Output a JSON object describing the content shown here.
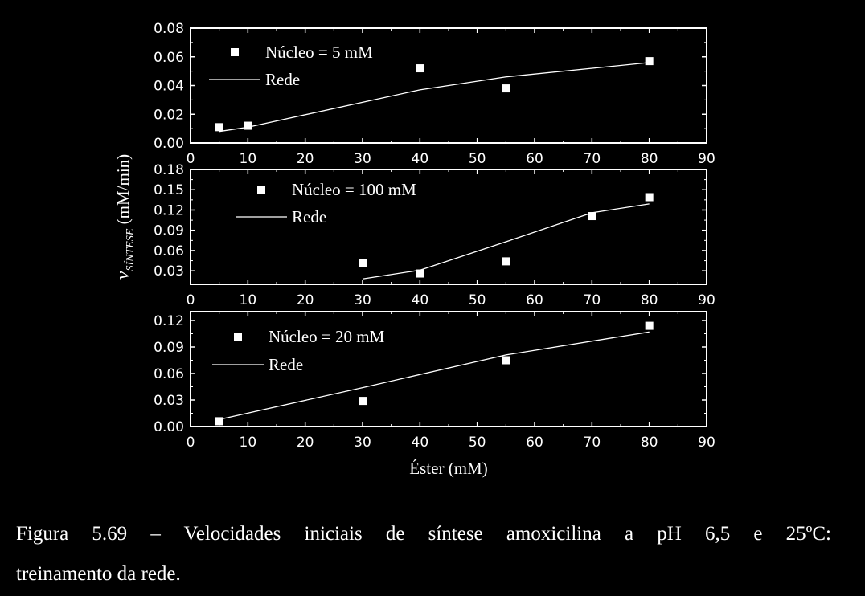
{
  "chart_data": [
    {
      "type": "scatter",
      "xlim": [
        0,
        90
      ],
      "x_ticks": [
        0,
        10,
        20,
        30,
        40,
        50,
        60,
        70,
        80,
        90
      ],
      "ylim": [
        0,
        0.08
      ],
      "y_ticks": [
        "0.00",
        "0.02",
        "0.04",
        "0.06",
        "0.08"
      ],
      "series": [
        {
          "name": "Núcleo = 5 mM",
          "kind": "markers",
          "x": [
            5,
            10,
            40,
            55,
            80
          ],
          "y": [
            0.011,
            0.012,
            0.052,
            0.038,
            0.057
          ]
        },
        {
          "name": "Rede",
          "kind": "line",
          "x": [
            5,
            10,
            40,
            55,
            80
          ],
          "y": [
            0.008,
            0.011,
            0.037,
            0.046,
            0.056
          ]
        }
      ]
    },
    {
      "type": "scatter",
      "xlim": [
        0,
        90
      ],
      "x_ticks": [
        0,
        10,
        20,
        30,
        40,
        50,
        60,
        70,
        80,
        90
      ],
      "ylim": [
        0.01,
        0.18
      ],
      "y_ticks": [
        "0.03",
        "0.06",
        "0.09",
        "0.12",
        "0.15",
        "0.18"
      ],
      "series": [
        {
          "name": "Núcleo = 100 mM",
          "kind": "markers",
          "x": [
            30,
            40,
            55,
            70,
            80
          ],
          "y": [
            0.042,
            0.026,
            0.044,
            0.111,
            0.139
          ]
        },
        {
          "name": "Rede",
          "kind": "line",
          "x": [
            30,
            40,
            55,
            70,
            80
          ],
          "y": [
            0.018,
            0.031,
            0.073,
            0.116,
            0.129
          ]
        }
      ]
    },
    {
      "type": "scatter",
      "xlim": [
        0,
        90
      ],
      "x_ticks": [
        0,
        10,
        20,
        30,
        40,
        50,
        60,
        70,
        80,
        90
      ],
      "ylim": [
        0,
        0.13
      ],
      "y_ticks": [
        "0.00",
        "0.03",
        "0.06",
        "0.09",
        "0.12"
      ],
      "series": [
        {
          "name": "Núcleo = 20 mM",
          "kind": "markers",
          "x": [
            5,
            30,
            55,
            80
          ],
          "y": [
            0.006,
            0.029,
            0.075,
            0.114
          ]
        },
        {
          "name": "Rede",
          "kind": "line",
          "x": [
            5,
            30,
            55,
            80
          ],
          "y": [
            0.008,
            0.044,
            0.081,
            0.107
          ]
        }
      ]
    }
  ],
  "axes": {
    "ylabel_main": "v",
    "ylabel_sub": "SÍNTESE",
    "ylabel_unit": " (mM/min)",
    "xlabel": "Éster (mM)"
  },
  "caption": {
    "line1": "Figura 5.69 – Velocidades iniciais de síntese amoxicilina a pH 6,5 e 25ºC:",
    "line2": "treinamento da rede."
  },
  "colors": {
    "background": "#000000",
    "foreground": "#ffffff"
  }
}
